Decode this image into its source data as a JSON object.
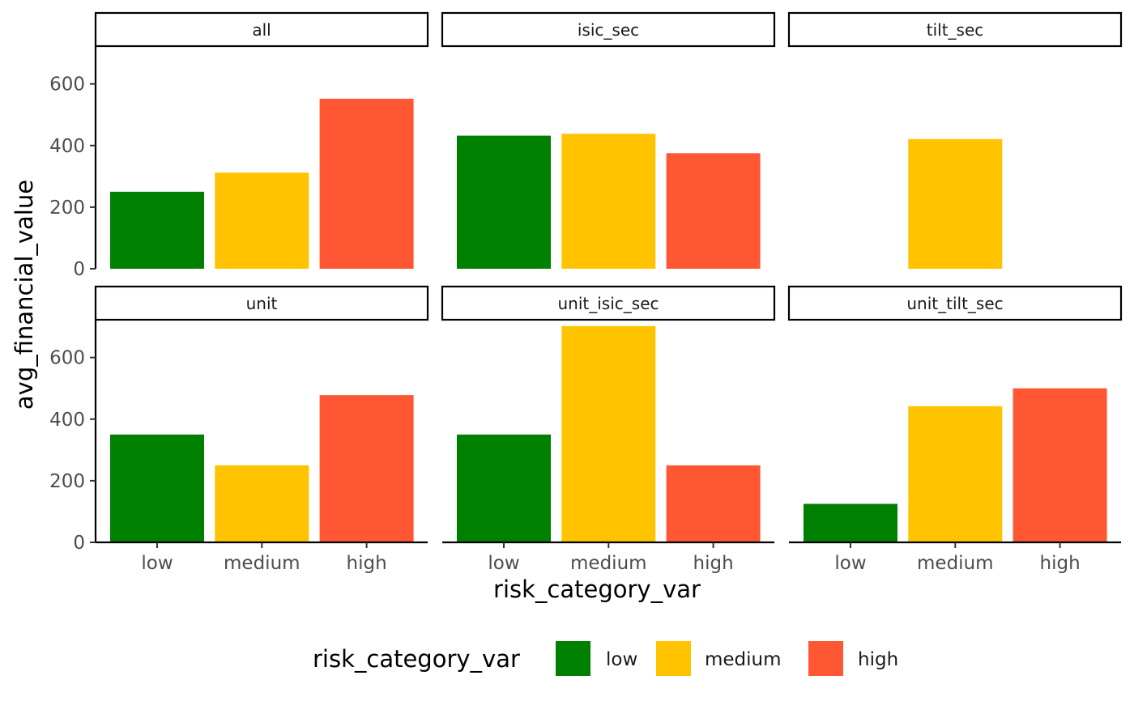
{
  "chart_data": {
    "type": "bar",
    "facet_wrap": true,
    "categories": [
      "low",
      "medium",
      "high"
    ],
    "xlabel": "risk_category_var",
    "ylabel": "avg_financial_value",
    "ylim": [
      0,
      720
    ],
    "y_ticks": [
      0,
      200,
      400,
      600
    ],
    "grid": false,
    "legend": {
      "title": "risk_category_var",
      "position": "bottom",
      "entries": [
        "low",
        "medium",
        "high"
      ]
    },
    "colors": {
      "low": "#008000",
      "medium": "#FFC300",
      "high": "#FF5733"
    },
    "facets": [
      {
        "name": "all",
        "values": [
          250,
          312,
          552
        ]
      },
      {
        "name": "isic_sec",
        "values": [
          432,
          438,
          375
        ]
      },
      {
        "name": "tilt_sec",
        "values": [
          null,
          421,
          null
        ]
      },
      {
        "name": "unit",
        "values": [
          350,
          250,
          478
        ]
      },
      {
        "name": "unit_isic_sec",
        "values": [
          350,
          702,
          250
        ]
      },
      {
        "name": "unit_tilt_sec",
        "values": [
          125,
          442,
          500
        ]
      }
    ]
  }
}
